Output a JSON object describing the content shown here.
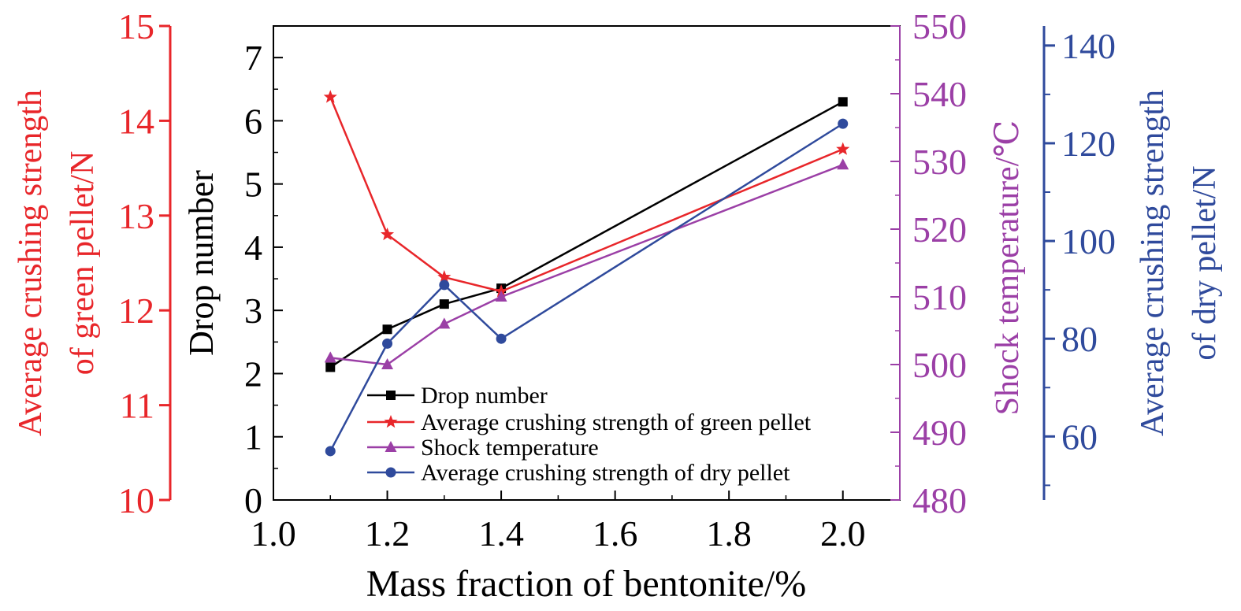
{
  "chart_data": {
    "type": "line",
    "x": [
      1.1,
      1.2,
      1.3,
      1.4,
      2.0
    ],
    "xlabel": "Mass fraction of bentonite/%",
    "xlim": [
      1.0,
      2.1
    ],
    "xticks": [
      1.0,
      1.2,
      1.4,
      1.6,
      1.8,
      2.0
    ],
    "xtick_labels": [
      "1.0",
      "1.2",
      "1.4",
      "1.6",
      "1.8",
      "2.0"
    ],
    "grid": false,
    "legend_position": "bottom-left",
    "axes": [
      {
        "id": "drop",
        "side": "left",
        "label": "Drop number",
        "ylim": [
          0,
          7.5
        ],
        "ticks": [
          0,
          1,
          2,
          3,
          4,
          5,
          6,
          7
        ],
        "tick_labels": [
          "0",
          "1",
          "2",
          "3",
          "4",
          "5",
          "6",
          "7"
        ],
        "color": "#000000"
      },
      {
        "id": "green",
        "side": "far-left",
        "label_lines": [
          "Average crushing strength",
          "of green pellet/N"
        ],
        "ylim": [
          10,
          15
        ],
        "ticks": [
          10,
          11,
          12,
          13,
          14,
          15
        ],
        "tick_labels": [
          "10",
          "11",
          "12",
          "13",
          "14",
          "15"
        ],
        "color": "#e8262a"
      },
      {
        "id": "shock",
        "side": "right",
        "label": "Shock temperature/℃",
        "ylim": [
          480,
          550
        ],
        "ticks": [
          480,
          490,
          500,
          510,
          520,
          530,
          540,
          550
        ],
        "tick_labels": [
          "480",
          "490",
          "500",
          "510",
          "520",
          "530",
          "540",
          "550"
        ],
        "color": "#9b3fa6"
      },
      {
        "id": "dry",
        "side": "far-right",
        "label_lines": [
          "Average crushing strength",
          "of dry pellet/N"
        ],
        "ylim": [
          47,
          144
        ],
        "ticks": [
          60,
          80,
          100,
          120,
          140
        ],
        "tick_labels": [
          "60",
          "80",
          "100",
          "120",
          "140"
        ],
        "color": "#2f4a9c"
      }
    ],
    "series": [
      {
        "name": "Drop number",
        "axis": "drop",
        "marker": "square",
        "color": "#000000",
        "values": [
          2.1,
          2.7,
          3.1,
          3.35,
          6.3
        ]
      },
      {
        "name": "Average crushing strength of green pellet",
        "axis": "green",
        "marker": "star",
        "color": "#e8262a",
        "values": [
          14.25,
          12.8,
          12.35,
          12.2,
          13.7
        ]
      },
      {
        "name": "Shock temperature",
        "axis": "shock",
        "marker": "triangle",
        "color": "#9b3fa6",
        "values": [
          501,
          500,
          506,
          510,
          529.5
        ]
      },
      {
        "name": "Average crushing strength of dry pellet",
        "axis": "dry",
        "marker": "circle",
        "color": "#2f4a9c",
        "values": [
          57,
          79,
          91,
          80,
          124
        ]
      }
    ]
  }
}
